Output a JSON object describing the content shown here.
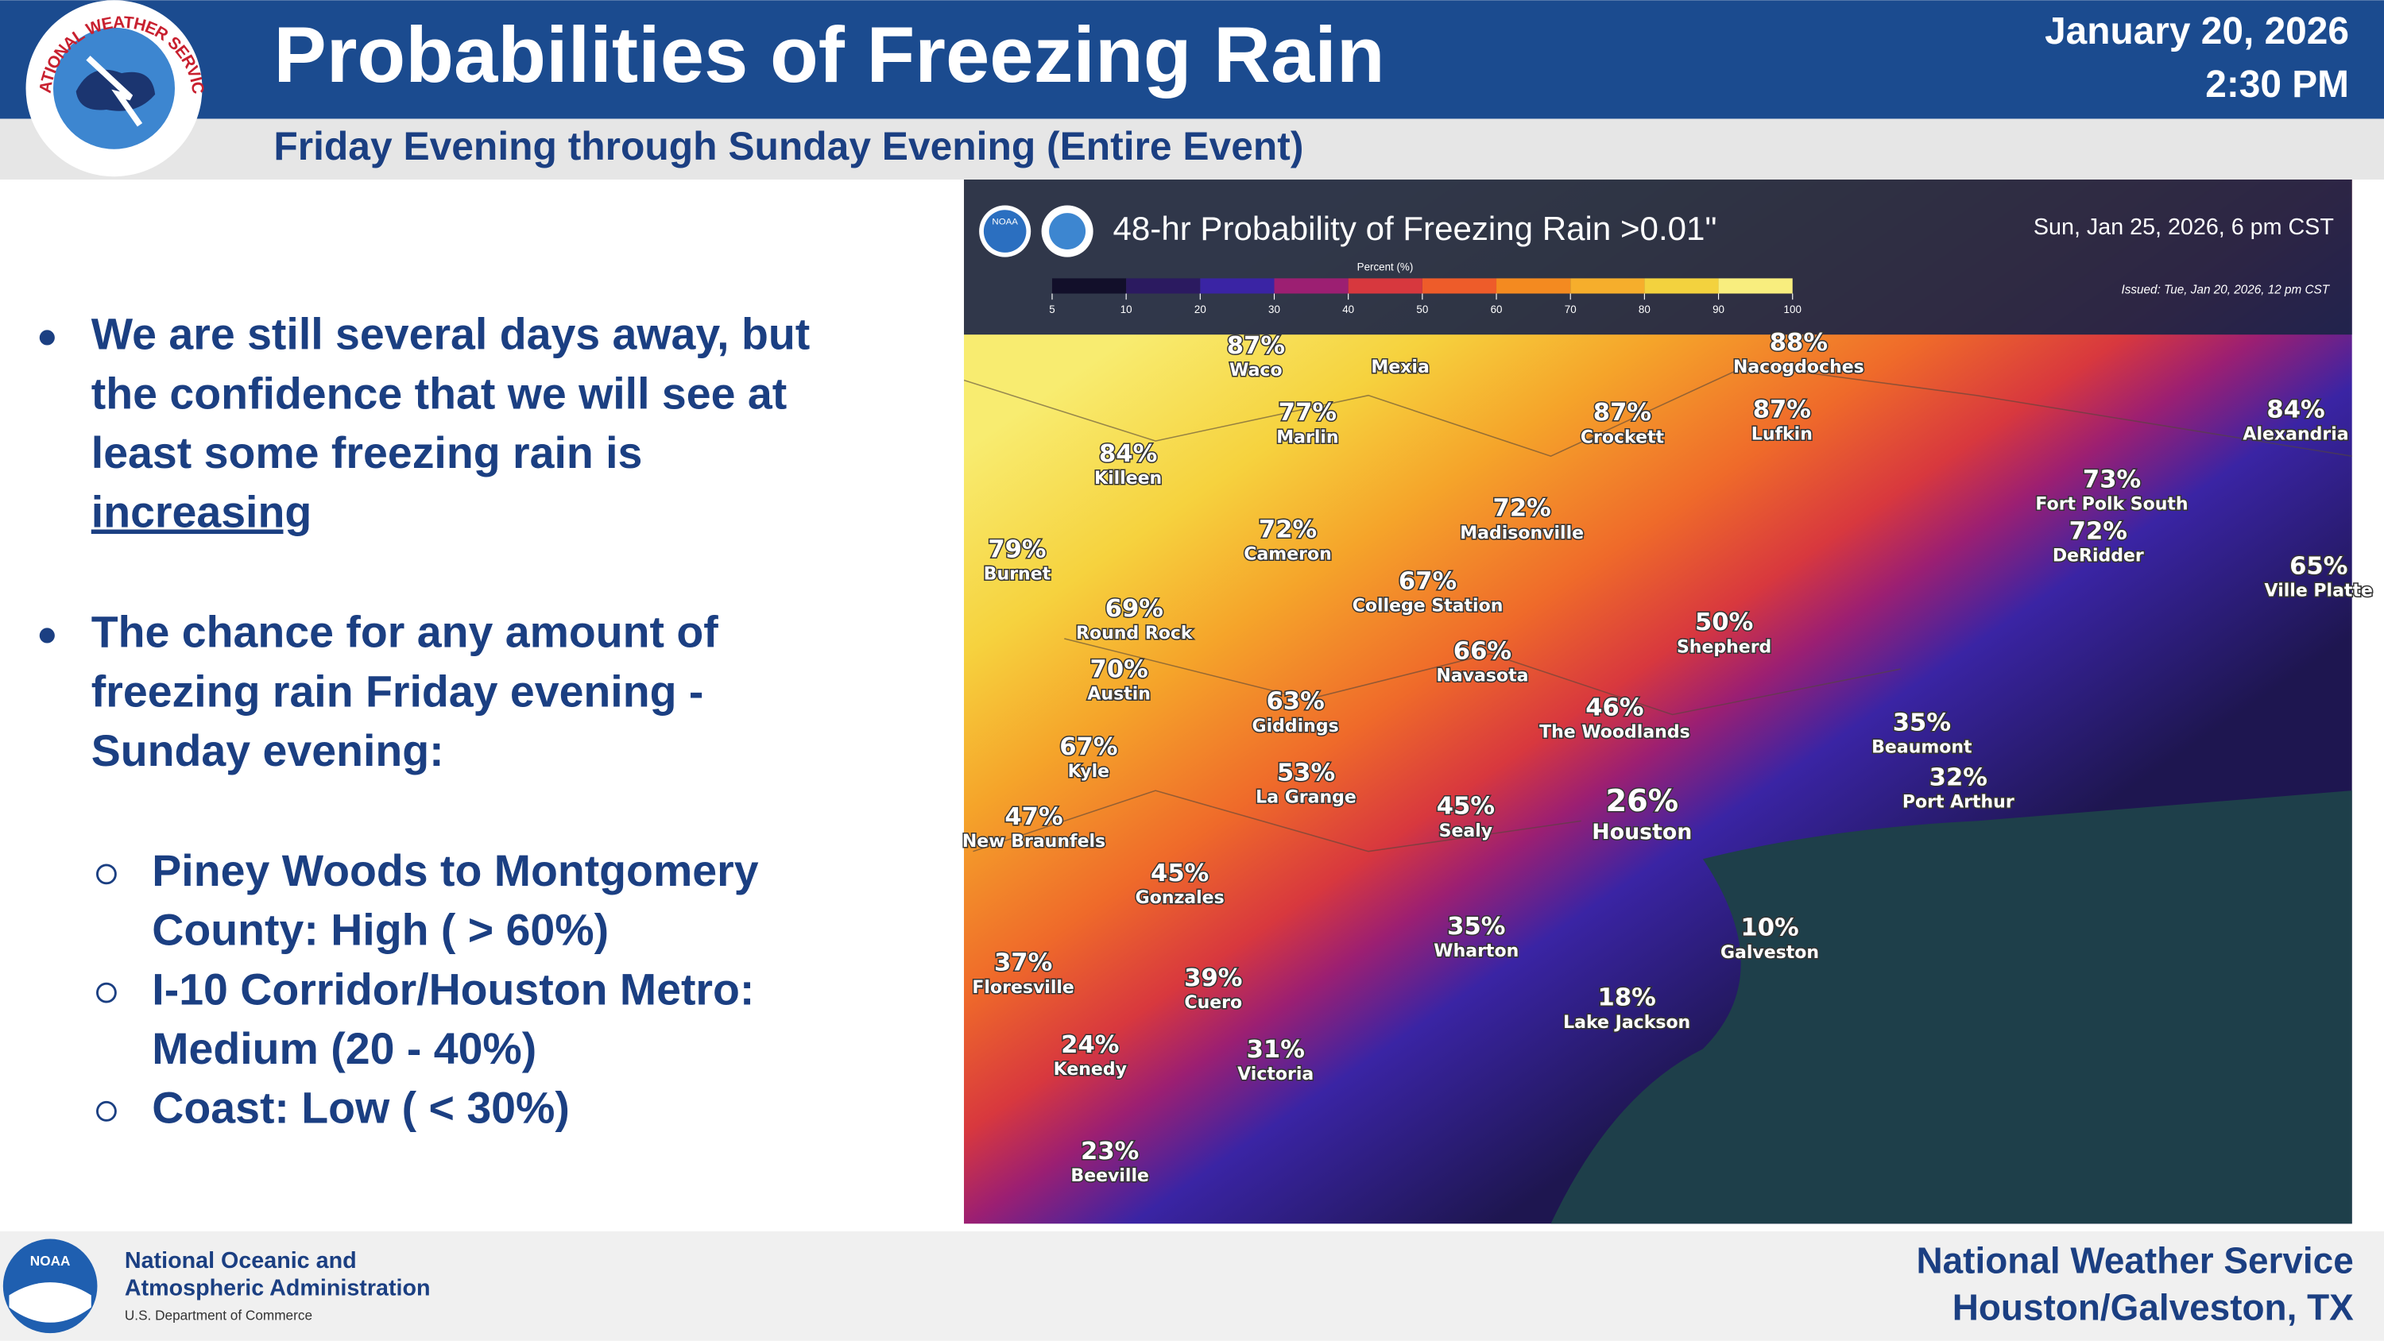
{
  "header": {
    "title": "Probabilities of Freezing Rain",
    "subtitle": "Friday Evening through Sunday Evening (Entire Event)",
    "date": "January 20, 2026",
    "time": "2:30 PM",
    "nws_logo_text": "NATIONAL WEATHER SERVICE"
  },
  "bullets": [
    {
      "lines": [
        "We are still several days away, but",
        "the confidence that we will see at",
        "least some freezing rain is",
        "increasing"
      ]
    },
    {
      "lines": [
        "The chance for any amount of",
        "freezing rain Friday evening -",
        "Sunday evening:"
      ],
      "sub": [
        {
          "lines": [
            "Piney Woods to Montgomery",
            "County: High ( > 60%)"
          ]
        },
        {
          "lines": [
            "I-10 Corridor/Houston Metro:",
            "Medium (20 - 40%)"
          ]
        },
        {
          "lines": [
            "Coast: Low ( < 30%)"
          ]
        }
      ]
    }
  ],
  "map": {
    "title": "48-hr Probability of Freezing Rain >0.01\"",
    "valid": "Sun, Jan 25, 2026, 6 pm CST",
    "issued": "Issued: Tue, Jan 20, 2026, 12 pm CST",
    "legend_title": "Percent (%)",
    "legend_ticks": [
      5,
      10,
      20,
      30,
      40,
      50,
      60,
      70,
      80,
      90,
      100
    ],
    "legend_colors": [
      "#120f2a",
      "#2b1a60",
      "#3a24a4",
      "#9c1f72",
      "#d7383e",
      "#ee5c2a",
      "#f48a20",
      "#f6ae2c",
      "#f3d23e",
      "#f8ee7e"
    ],
    "logo_text": "NOAA",
    "labels": [
      {
        "pct": "87%",
        "name": "Waco"
      },
      {
        "name": "Mexia"
      },
      {
        "pct": "88%",
        "name": "Nacogdoches"
      },
      {
        "pct": "77%",
        "name": "Marlin"
      },
      {
        "pct": "87%",
        "name": "Crockett"
      },
      {
        "pct": "87%",
        "name": "Lufkin"
      },
      {
        "pct": "84%",
        "name": "Alexandria"
      },
      {
        "pct": "84%",
        "name": "Killeen"
      },
      {
        "pct": "72%",
        "name": "Madisonville"
      },
      {
        "pct": "73%",
        "name": "Fort Polk South"
      },
      {
        "pct": "72%",
        "name": "Cameron"
      },
      {
        "pct": "72%",
        "name": "DeRidder"
      },
      {
        "pct": "79%",
        "name": "Burnet"
      },
      {
        "pct": "65%",
        "name": "Ville Platte"
      },
      {
        "pct": "67%",
        "name": "College Station"
      },
      {
        "pct": "69%",
        "name": "Round Rock"
      },
      {
        "pct": "50%",
        "name": "Shepherd"
      },
      {
        "pct": "66%",
        "name": "Navasota"
      },
      {
        "pct": "70%",
        "name": "Austin"
      },
      {
        "pct": "63%",
        "name": "Giddings"
      },
      {
        "pct": "46%",
        "name": "The Woodlands"
      },
      {
        "pct": "35%",
        "name": "Beaumont"
      },
      {
        "pct": "67%",
        "name": "Kyle"
      },
      {
        "pct": "53%",
        "name": "La Grange"
      },
      {
        "pct": "32%",
        "name": "Port Arthur"
      },
      {
        "pct": "47%",
        "name": "New Braunfels"
      },
      {
        "pct": "45%",
        "name": "Sealy"
      },
      {
        "pct": "26%",
        "name": "Houston"
      },
      {
        "pct": "45%",
        "name": "Gonzales"
      },
      {
        "pct": "35%",
        "name": "Wharton"
      },
      {
        "pct": "10%",
        "name": "Galveston"
      },
      {
        "pct": "37%",
        "name": "Floresville"
      },
      {
        "pct": "39%",
        "name": "Cuero"
      },
      {
        "pct": "18%",
        "name": "Lake Jackson"
      },
      {
        "pct": "24%",
        "name": "Kenedy"
      },
      {
        "pct": "31%",
        "name": "Victoria"
      },
      {
        "pct": "23%",
        "name": "Beeville"
      }
    ]
  },
  "footer": {
    "noaa_logo_text": "NOAA",
    "org_line1": "National Oceanic and",
    "org_line2": "Atmospheric Administration",
    "dept": "U.S. Department of Commerce",
    "office_line1": "National Weather Service",
    "office_line2": "Houston/Galveston, TX"
  }
}
